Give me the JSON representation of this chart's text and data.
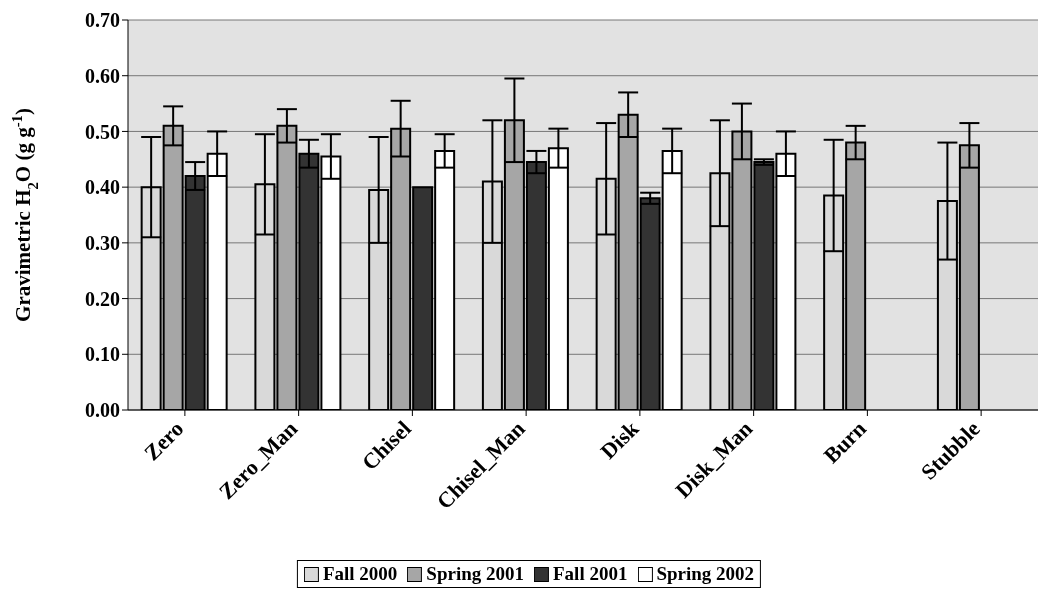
{
  "chart_data": {
    "type": "bar",
    "ylabel": "Gravimetric H$_{2}$O (g g$^{-1}$)",
    "categories": [
      "Zero",
      "Zero_Man",
      "Chisel",
      "Chisel_Man",
      "Disk",
      "Disk_Man",
      "Burn",
      "Stubble"
    ],
    "series": [
      {
        "name": "Fall 2000",
        "color": "#d9d9d9",
        "values": [
          0.4,
          0.405,
          0.395,
          0.41,
          0.415,
          0.425,
          0.385,
          0.375
        ],
        "errors": [
          0.09,
          0.09,
          0.095,
          0.11,
          0.1,
          0.095,
          0.1,
          0.105
        ]
      },
      {
        "name": "Spring 2001",
        "color": "#a6a6a6",
        "values": [
          0.51,
          0.51,
          0.505,
          0.52,
          0.53,
          0.5,
          0.48,
          0.475
        ],
        "errors": [
          0.035,
          0.03,
          0.05,
          0.075,
          0.04,
          0.05,
          0.03,
          0.04
        ]
      },
      {
        "name": "Fall 2001",
        "color": "#333333",
        "values": [
          0.42,
          0.46,
          0.4,
          0.445,
          0.38,
          0.445,
          null,
          null
        ],
        "errors": [
          0.025,
          0.025,
          null,
          0.02,
          0.01,
          0.005,
          null,
          null
        ]
      },
      {
        "name": "Spring 2002",
        "color": "#ffffff",
        "values": [
          0.46,
          0.455,
          0.465,
          0.47,
          0.465,
          0.46,
          null,
          null
        ],
        "errors": [
          0.04,
          0.04,
          0.03,
          0.035,
          0.04,
          0.04,
          null,
          null
        ]
      }
    ],
    "ylim": [
      0,
      0.7
    ],
    "yticks": [
      {
        "value": 0,
        "label": "0.00"
      },
      {
        "value": 0.1,
        "label": "0.10"
      },
      {
        "value": 0.2,
        "label": "0.20"
      },
      {
        "value": 0.3,
        "label": "0.30"
      },
      {
        "value": 0.4,
        "label": "0.40"
      },
      {
        "value": 0.5,
        "label": "0.50"
      },
      {
        "value": 0.6,
        "label": "0.60"
      },
      {
        "value": 0.7,
        "label": "0.70"
      }
    ],
    "grid": "y",
    "legend": "bottom"
  }
}
